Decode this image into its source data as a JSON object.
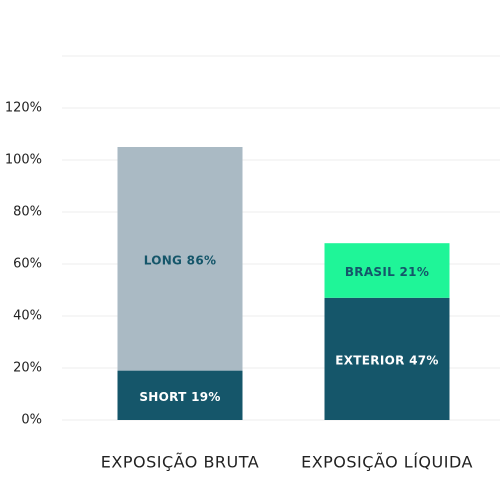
{
  "chart_data": {
    "type": "stacked-bar",
    "categories": [
      "EXPOSIÇÃO BRUTA",
      "EXPOSIÇÃO LÍQUIDA"
    ],
    "series": [
      {
        "color": "#15566a",
        "values": [
          19,
          null
        ],
        "value_labels": [
          "SHORT 19%",
          null
        ]
      },
      {
        "color": "#aabac4",
        "values": [
          86,
          null
        ],
        "value_labels": [
          "LONG 86%",
          null
        ]
      },
      {
        "color": "#15566a",
        "values": [
          null,
          47
        ],
        "value_labels": [
          null,
          "EXTERIOR 47%"
        ]
      },
      {
        "color": "#1ff598",
        "values": [
          null,
          21
        ],
        "value_labels": [
          null,
          "BRASIL 21%"
        ]
      }
    ],
    "ylim": [
      0,
      140
    ],
    "yticks": [
      {
        "value": 0,
        "label": "0%"
      },
      {
        "value": 20,
        "label": "20%"
      },
      {
        "value": 40,
        "label": "40%"
      },
      {
        "value": 60,
        "label": "60%"
      },
      {
        "value": 80,
        "label": "80%"
      },
      {
        "value": 100,
        "label": "100%"
      },
      {
        "value": 120,
        "label": "120%"
      }
    ],
    "grid": true
  }
}
